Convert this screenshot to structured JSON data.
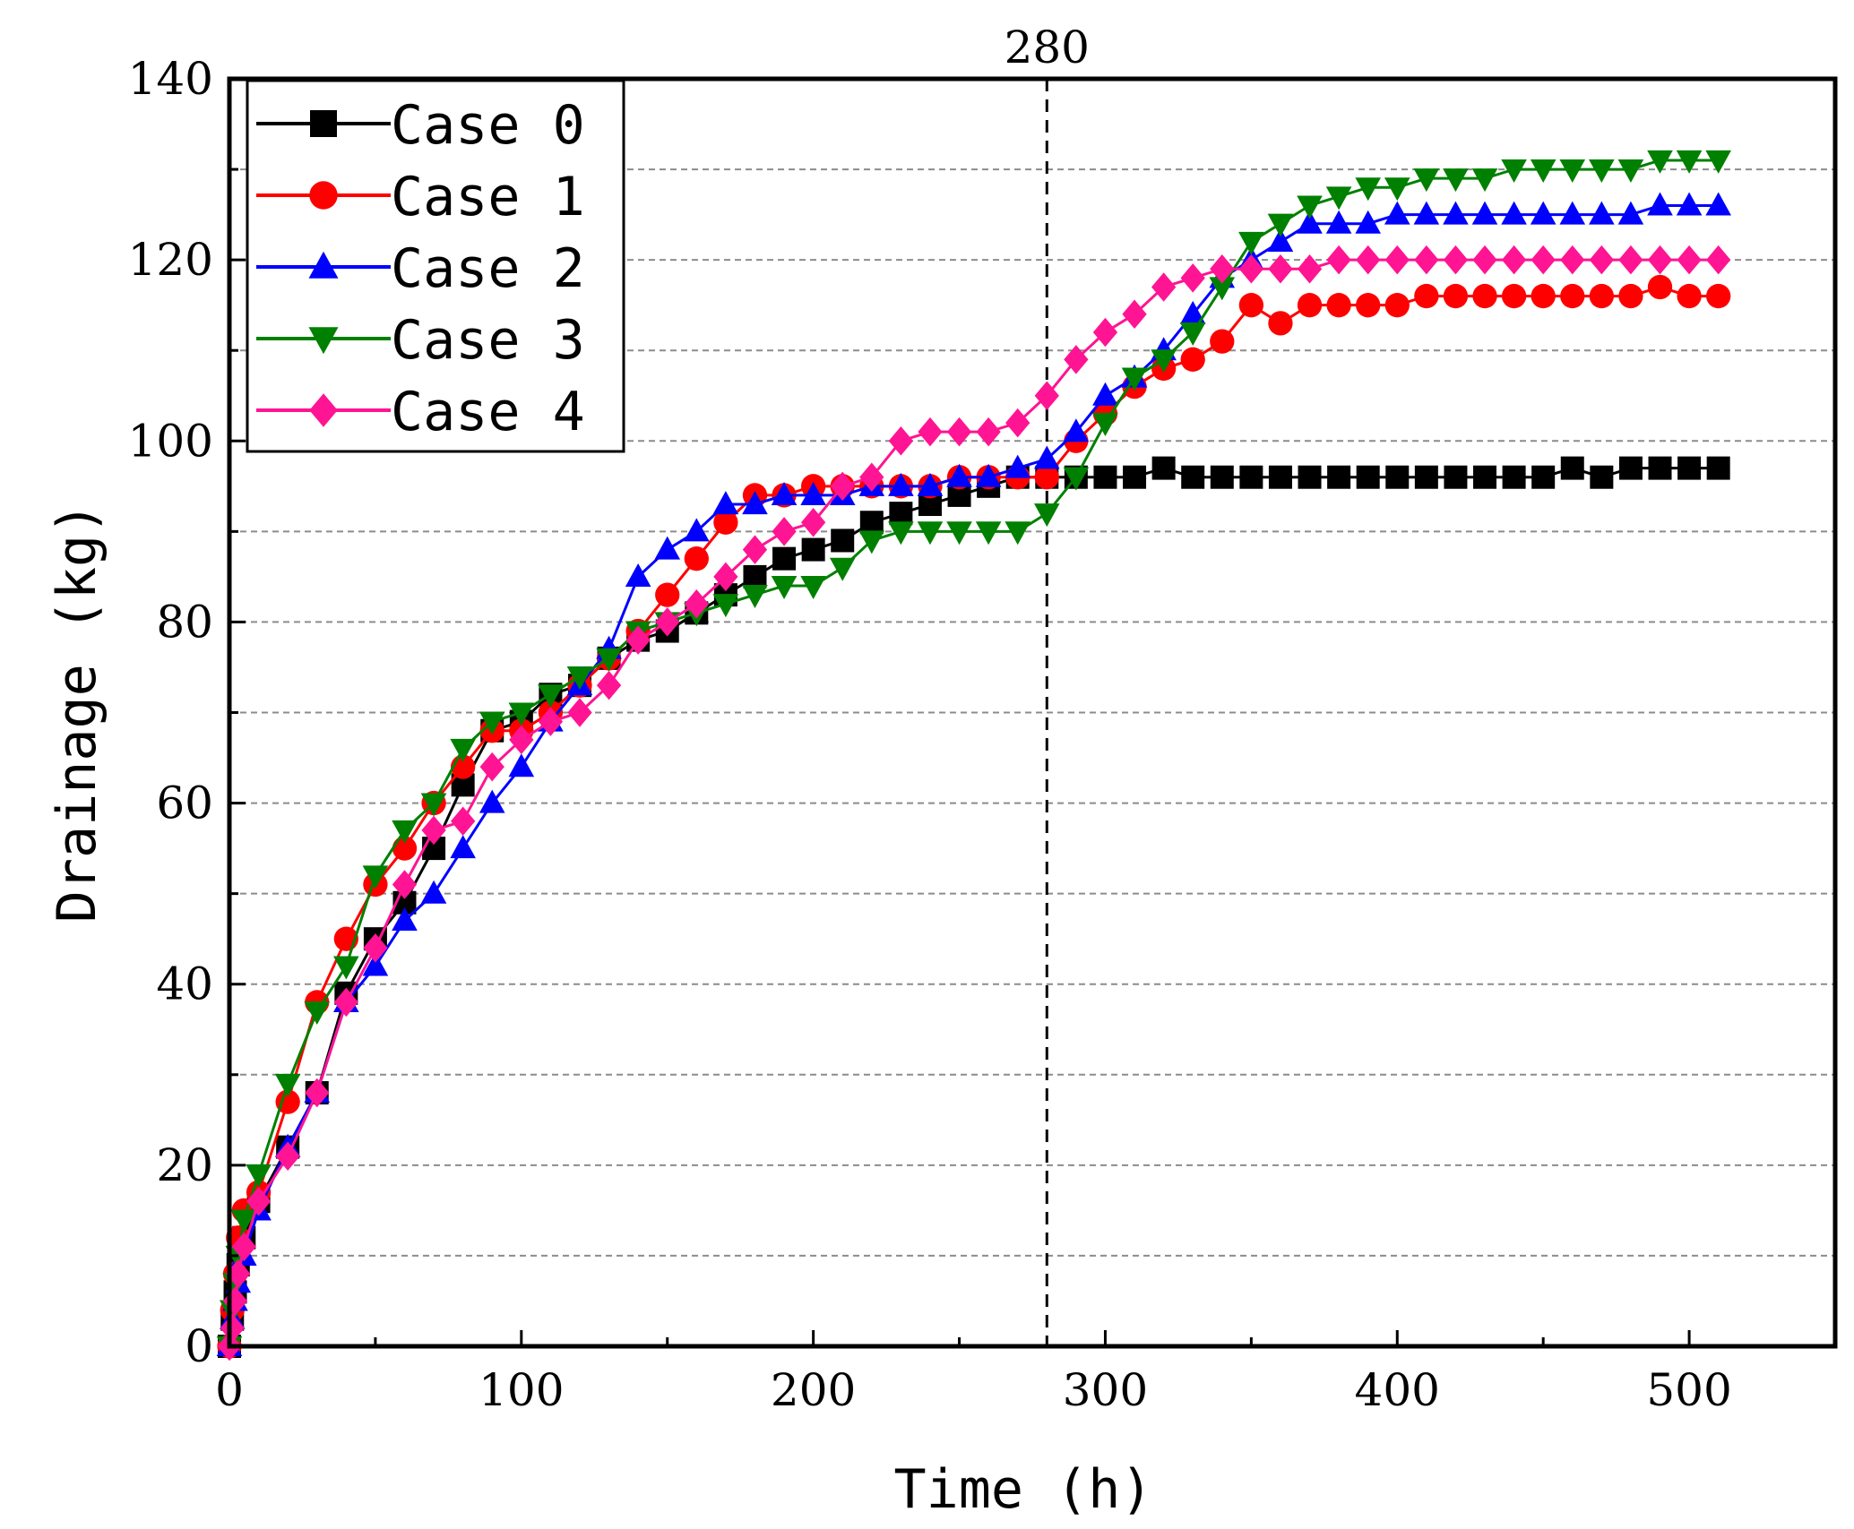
{
  "chart_data": {
    "type": "line",
    "title": "",
    "xlabel": "Time (h)",
    "ylabel": "Drainage (kg)",
    "xlim": [
      0,
      550
    ],
    "ylim": [
      0,
      140
    ],
    "xticks": [
      0,
      100,
      200,
      300,
      400,
      500
    ],
    "yticks": [
      0,
      20,
      40,
      60,
      80,
      100,
      120,
      140
    ],
    "grid": "horizontal dashed",
    "legend_position": "top-left",
    "annotation": {
      "x": 280,
      "label": "280",
      "style": "vertical dashed line"
    },
    "series": [
      {
        "name": "Case 0",
        "color": "#000000",
        "marker": "square",
        "x": [
          0,
          1,
          2,
          3,
          5,
          10,
          20,
          30,
          40,
          50,
          60,
          70,
          80,
          90,
          100,
          110,
          120,
          130,
          140,
          150,
          160,
          170,
          180,
          190,
          200,
          210,
          220,
          230,
          240,
          250,
          260,
          270,
          280,
          290,
          300,
          310,
          320,
          330,
          340,
          350,
          360,
          370,
          380,
          390,
          400,
          410,
          420,
          430,
          440,
          450,
          460,
          470,
          480,
          490,
          500,
          510
        ],
        "y": [
          0,
          3,
          6,
          9,
          12,
          16,
          22,
          28,
          39,
          45,
          49,
          55,
          62,
          68,
          69,
          72,
          73,
          76,
          78,
          79,
          81,
          83,
          85,
          87,
          88,
          89,
          91,
          92,
          93,
          94,
          95,
          96,
          96,
          96,
          96,
          96,
          97,
          96,
          96,
          96,
          96,
          96,
          96,
          96,
          96,
          96,
          96,
          96,
          96,
          96,
          97,
          96,
          97,
          97,
          97,
          97
        ]
      },
      {
        "name": "Case 1",
        "color": "#ff0000",
        "marker": "circle",
        "x": [
          0,
          1,
          2,
          3,
          5,
          10,
          20,
          30,
          40,
          50,
          60,
          70,
          80,
          90,
          100,
          110,
          120,
          130,
          140,
          150,
          160,
          170,
          180,
          190,
          200,
          210,
          220,
          230,
          240,
          250,
          260,
          270,
          280,
          290,
          300,
          310,
          320,
          330,
          340,
          350,
          360,
          370,
          380,
          390,
          400,
          410,
          420,
          430,
          440,
          450,
          460,
          470,
          480,
          490,
          500,
          510
        ],
        "y": [
          0,
          4,
          8,
          12,
          15,
          17,
          27,
          38,
          45,
          51,
          55,
          60,
          64,
          68,
          68,
          70,
          73,
          76,
          79,
          83,
          87,
          91,
          94,
          94,
          95,
          95,
          95,
          95,
          95,
          96,
          96,
          96,
          96,
          100,
          103,
          106,
          108,
          109,
          111,
          115,
          113,
          115,
          115,
          115,
          115,
          116,
          116,
          116,
          116,
          116,
          116,
          116,
          116,
          117,
          116,
          116
        ]
      },
      {
        "name": "Case 2",
        "color": "#0000ff",
        "marker": "triangle-up",
        "x": [
          0,
          1,
          2,
          3,
          5,
          10,
          20,
          30,
          40,
          50,
          60,
          70,
          80,
          90,
          100,
          110,
          120,
          130,
          140,
          150,
          160,
          170,
          180,
          190,
          200,
          210,
          220,
          230,
          240,
          250,
          260,
          270,
          280,
          290,
          300,
          310,
          320,
          330,
          340,
          350,
          360,
          370,
          380,
          390,
          400,
          410,
          420,
          430,
          440,
          450,
          460,
          470,
          480,
          490,
          500,
          510
        ],
        "y": [
          0,
          3,
          5,
          7,
          10,
          15,
          22,
          28,
          38,
          42,
          47,
          50,
          55,
          60,
          64,
          69,
          73,
          77,
          85,
          88,
          90,
          93,
          93,
          94,
          94,
          94,
          95,
          95,
          95,
          96,
          96,
          97,
          98,
          101,
          105,
          107,
          110,
          114,
          118,
          120,
          122,
          124,
          124,
          124,
          125,
          125,
          125,
          125,
          125,
          125,
          125,
          125,
          125,
          126,
          126,
          126
        ]
      },
      {
        "name": "Case 3",
        "color": "#008000",
        "marker": "triangle-down",
        "x": [
          0,
          1,
          2,
          3,
          5,
          10,
          20,
          30,
          40,
          50,
          60,
          70,
          80,
          90,
          100,
          110,
          120,
          130,
          140,
          150,
          160,
          170,
          180,
          190,
          200,
          210,
          220,
          230,
          240,
          250,
          260,
          270,
          280,
          290,
          300,
          310,
          320,
          330,
          340,
          350,
          360,
          370,
          380,
          390,
          400,
          410,
          420,
          430,
          440,
          450,
          460,
          470,
          480,
          490,
          500,
          510
        ],
        "y": [
          0,
          4,
          7,
          10,
          14,
          19,
          29,
          37,
          42,
          52,
          57,
          60,
          66,
          69,
          70,
          72,
          74,
          76,
          79,
          80,
          81,
          82,
          83,
          84,
          84,
          86,
          89,
          90,
          90,
          90,
          90,
          90,
          92,
          96,
          102,
          107,
          109,
          112,
          117,
          122,
          124,
          126,
          127,
          128,
          128,
          129,
          129,
          129,
          130,
          130,
          130,
          130,
          130,
          131,
          131,
          131
        ]
      },
      {
        "name": "Case 4",
        "color": "#ff1493",
        "marker": "diamond",
        "x": [
          0,
          1,
          2,
          3,
          5,
          10,
          20,
          30,
          40,
          50,
          60,
          70,
          80,
          90,
          100,
          110,
          120,
          130,
          140,
          150,
          160,
          170,
          180,
          190,
          200,
          210,
          220,
          230,
          240,
          250,
          260,
          270,
          280,
          290,
          300,
          310,
          320,
          330,
          340,
          350,
          360,
          370,
          380,
          390,
          400,
          410,
          420,
          430,
          440,
          450,
          460,
          470,
          480,
          490,
          500,
          510
        ],
        "y": [
          0,
          2,
          5,
          8,
          11,
          16,
          21,
          28,
          38,
          44,
          51,
          57,
          58,
          64,
          67,
          69,
          70,
          73,
          78,
          80,
          82,
          85,
          88,
          90,
          91,
          95,
          96,
          100,
          101,
          101,
          101,
          102,
          105,
          109,
          112,
          114,
          117,
          118,
          119,
          119,
          119,
          119,
          120,
          120,
          120,
          120,
          120,
          120,
          120,
          120,
          120,
          120,
          120,
          120,
          120,
          120
        ]
      }
    ]
  }
}
